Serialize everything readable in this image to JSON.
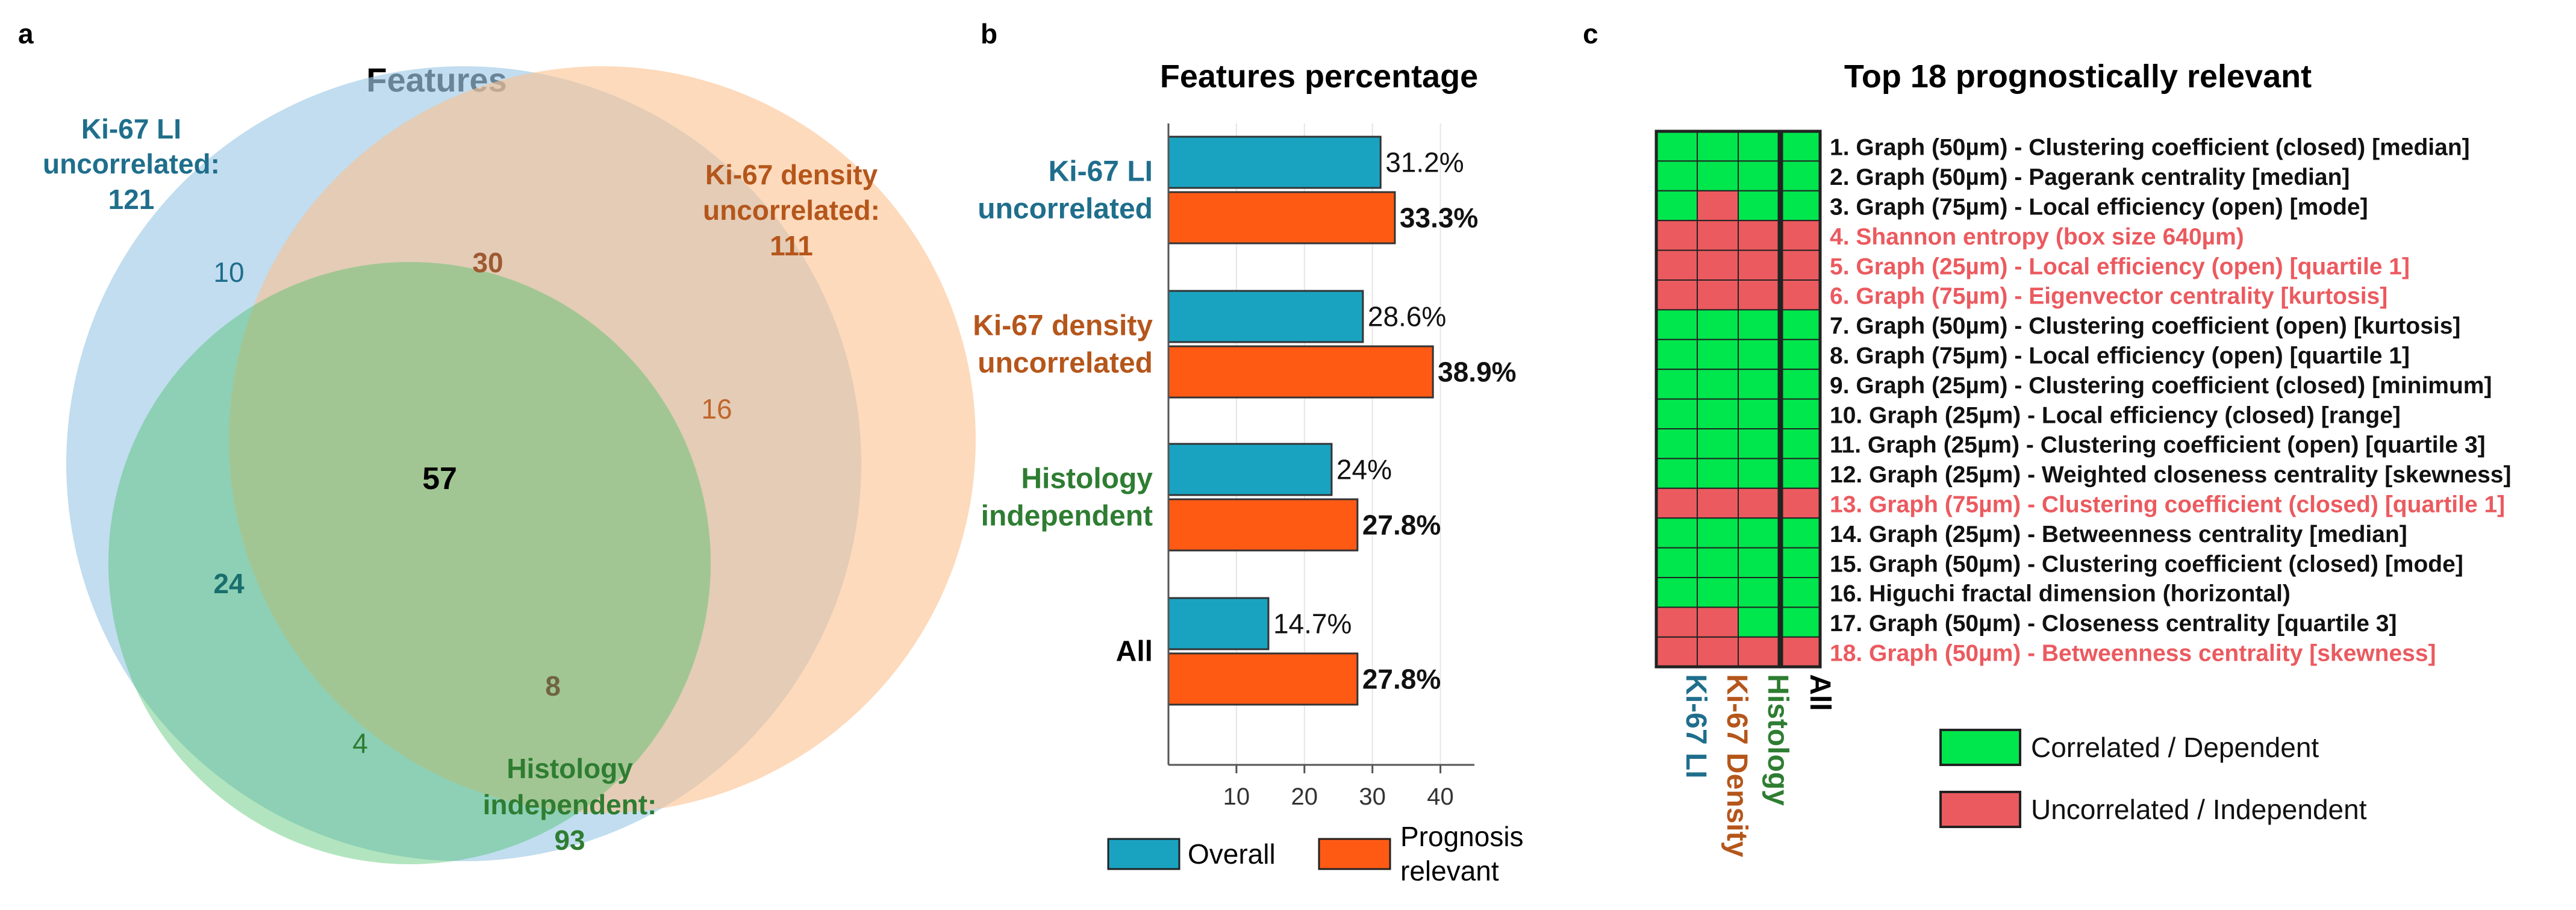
{
  "panel_a": {
    "letter": "a",
    "title": "Features",
    "sets": {
      "ki67li": {
        "label": [
          "Ki-67 LI",
          "uncorrelated:",
          "121"
        ],
        "color": "#1f6e8c",
        "fill": "#9fcbe6"
      },
      "ki67density": {
        "label": [
          "Ki-67 density",
          "uncorrelated:",
          "111"
        ],
        "color": "#b5561b",
        "fill": "#fbc28f"
      },
      "histology": {
        "label": [
          "Histology",
          "independent:",
          "93"
        ],
        "color": "#2e7d32",
        "fill": "#8fd8a0"
      }
    },
    "regions": {
      "li_only": "10",
      "li_density": "30",
      "density_only": "16",
      "all": "57",
      "li_histology": "24",
      "density_histology": "8",
      "histology_only": "4"
    }
  },
  "panel_b": {
    "letter": "b",
    "legend": {
      "overall": "Overall",
      "prognosis": [
        "Prognosis",
        "relevant"
      ]
    }
  },
  "chart_data": [
    {
      "type": "venn",
      "title": "Features",
      "sets": [
        {
          "name": "Ki-67 LI uncorrelated",
          "size": 121
        },
        {
          "name": "Ki-67 density uncorrelated",
          "size": 111
        },
        {
          "name": "Histology independent",
          "size": 93
        }
      ],
      "regions": {
        "Ki-67 LI only": 10,
        "Ki-67 LI & Ki-67 density only": 30,
        "Ki-67 density only": 16,
        "all three": 57,
        "Ki-67 LI & Histology only": 24,
        "Ki-67 density & Histology only": 8,
        "Histology only": 4
      }
    },
    {
      "type": "bar",
      "orientation": "horizontal",
      "title": "Features percentage",
      "categories": [
        {
          "lines": [
            "Ki-67 LI",
            "uncorrelated"
          ],
          "color": "#1f6e8c"
        },
        {
          "lines": [
            "Ki-67 density",
            "uncorrelated"
          ],
          "color": "#b5561b"
        },
        {
          "lines": [
            "Histology",
            "independent"
          ],
          "color": "#2e7d32"
        },
        {
          "lines": [
            "All"
          ],
          "color": "#000000"
        }
      ],
      "series": [
        {
          "name": "Overall",
          "color": "#1aa3c1",
          "values": [
            31.2,
            28.6,
            24,
            14.7
          ],
          "labels": [
            "31.2%",
            "28.6%",
            "24%",
            "14.7%"
          ]
        },
        {
          "name": "Prognosis relevant",
          "color": "#ff5a14",
          "values": [
            33.3,
            38.9,
            27.8,
            27.8
          ],
          "labels": [
            "33.3%",
            "38.9%",
            "27.8%",
            "27.8%"
          ]
        }
      ],
      "xlim": [
        0,
        45
      ],
      "xticks": [
        "10",
        "20",
        "30",
        "40"
      ]
    },
    {
      "type": "heatmap",
      "title": "Top 18 prognostically relevant",
      "columns": [
        "Ki-67 LI",
        "Ki-67 Density",
        "Histology"
      ],
      "extra_column": "All",
      "column_colors": [
        "#1f6e8c",
        "#b5561b",
        "#2e7d32"
      ],
      "rows": [
        {
          "label": "1. Graph (50µm) - Clustering coefficient (closed) [median]",
          "cells": [
            1,
            1,
            1
          ],
          "all": 1
        },
        {
          "label": "2. Graph (50µm) - Pagerank centrality [median]",
          "cells": [
            1,
            1,
            1
          ],
          "all": 1
        },
        {
          "label": "3. Graph (75µm) - Local efficiency (open) [mode]",
          "cells": [
            1,
            0,
            1
          ],
          "all": 1
        },
        {
          "label": "4. Shannon entropy (box size 640µm)",
          "cells": [
            0,
            0,
            0
          ],
          "all": 0
        },
        {
          "label": "5. Graph (25µm) - Local efficiency (open) [quartile 1]",
          "cells": [
            0,
            0,
            0
          ],
          "all": 0
        },
        {
          "label": "6. Graph (75µm) - Eigenvector centrality [kurtosis]",
          "cells": [
            0,
            0,
            0
          ],
          "all": 0
        },
        {
          "label": "7. Graph (50µm) - Clustering coefficient (open) [kurtosis]",
          "cells": [
            1,
            1,
            1
          ],
          "all": 1
        },
        {
          "label": "8. Graph (75µm) - Local efficiency (open) [quartile 1]",
          "cells": [
            1,
            1,
            1
          ],
          "all": 1
        },
        {
          "label": "9. Graph (25µm) - Clustering coefficient (closed) [minimum]",
          "cells": [
            1,
            1,
            1
          ],
          "all": 1
        },
        {
          "label": "10. Graph (25µm) - Local efficiency (closed) [range]",
          "cells": [
            1,
            1,
            1
          ],
          "all": 1
        },
        {
          "label": "11. Graph (25µm) - Clustering coefficient (open) [quartile 3]",
          "cells": [
            1,
            1,
            1
          ],
          "all": 1
        },
        {
          "label": "12. Graph (25µm) - Weighted closeness centrality [skewness]",
          "cells": [
            1,
            1,
            1
          ],
          "all": 1
        },
        {
          "label": "13. Graph (75µm) - Clustering coefficient (closed) [quartile 1]",
          "cells": [
            0,
            0,
            0
          ],
          "all": 0
        },
        {
          "label": "14. Graph (25µm) - Betweenness centrality [median]",
          "cells": [
            1,
            1,
            1
          ],
          "all": 1
        },
        {
          "label": "15. Graph (50µm) - Clustering coefficient (closed) [mode]",
          "cells": [
            1,
            1,
            1
          ],
          "all": 1
        },
        {
          "label": "16. Higuchi fractal dimension (horizontal)",
          "cells": [
            1,
            1,
            1
          ],
          "all": 1
        },
        {
          "label": "17. Graph (50µm) - Closeness centrality [quartile 3]",
          "cells": [
            0,
            0,
            1
          ],
          "all": 1
        },
        {
          "label": "18. Graph (50µm) - Betweenness centrality [skewness]",
          "cells": [
            0,
            0,
            0
          ],
          "all": 0
        }
      ],
      "legend": [
        {
          "label": "Correlated / Dependent",
          "color": "#00e64d"
        },
        {
          "label": "Uncorrelated / Independent",
          "color": "#eb5a5f"
        }
      ]
    }
  ],
  "panel_c": {
    "letter": "c"
  },
  "colors": {
    "green": "#00e64d",
    "red": "#eb5a5f",
    "red_text": "#eb5a5f",
    "teal": "#1aa3c1",
    "orange": "#ff5a14"
  }
}
